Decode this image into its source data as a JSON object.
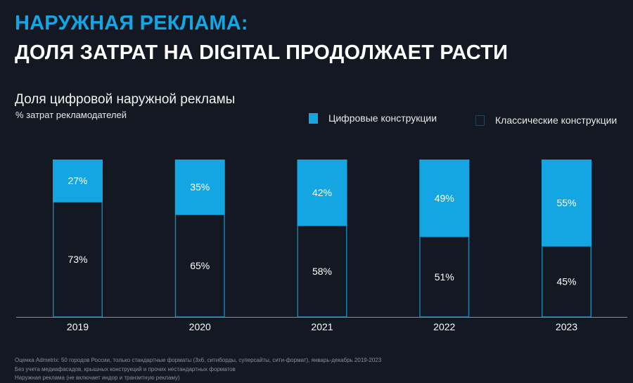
{
  "header": {
    "title_line1": "НАРУЖНАЯ РЕКЛАМА:",
    "title_line2": "ДОЛЯ ЗАТРАТ НА DIGITAL ПРОДОЛЖАЕТ РАСТИ"
  },
  "colors": {
    "background": "#141822",
    "accent": "#13a6e3",
    "classic_border": "#1a7fae",
    "axis": "#8a8f99"
  },
  "chart_data": {
    "type": "bar",
    "stacked": true,
    "title": "Доля цифровой наружной рекламы",
    "subtitle": "% затрат рекламодателей",
    "xlabel": "",
    "ylabel": "",
    "ylim": [
      0,
      100
    ],
    "grid": false,
    "legend_position": "top-right",
    "categories": [
      "2019",
      "2020",
      "2021",
      "2022",
      "2023"
    ],
    "series": [
      {
        "name": "Классические конструкции",
        "values": [
          73,
          65,
          58,
          51,
          45
        ],
        "labels": [
          "73%",
          "65%",
          "58%",
          "51%",
          "45%"
        ]
      },
      {
        "name": "Цифровые конструкции",
        "values": [
          27,
          35,
          42,
          49,
          55
        ],
        "labels": [
          "27%",
          "35%",
          "42%",
          "49%",
          "55%"
        ]
      }
    ]
  },
  "legend": {
    "digital": "Цифровые конструкции",
    "classic": "Классические конструкции"
  },
  "footnotes": [
    "Оценка Admetrix: 50 городов России, только стандартные форматы (3х6, ситиборды, суперсайты, сити-формат), январь-декабрь 2019-2023",
    "Без учета медиафасадов, крышных конструкций и прочих нестандартных форматов",
    "Наружная реклама (не включает индор и транзитную рекламу)"
  ]
}
